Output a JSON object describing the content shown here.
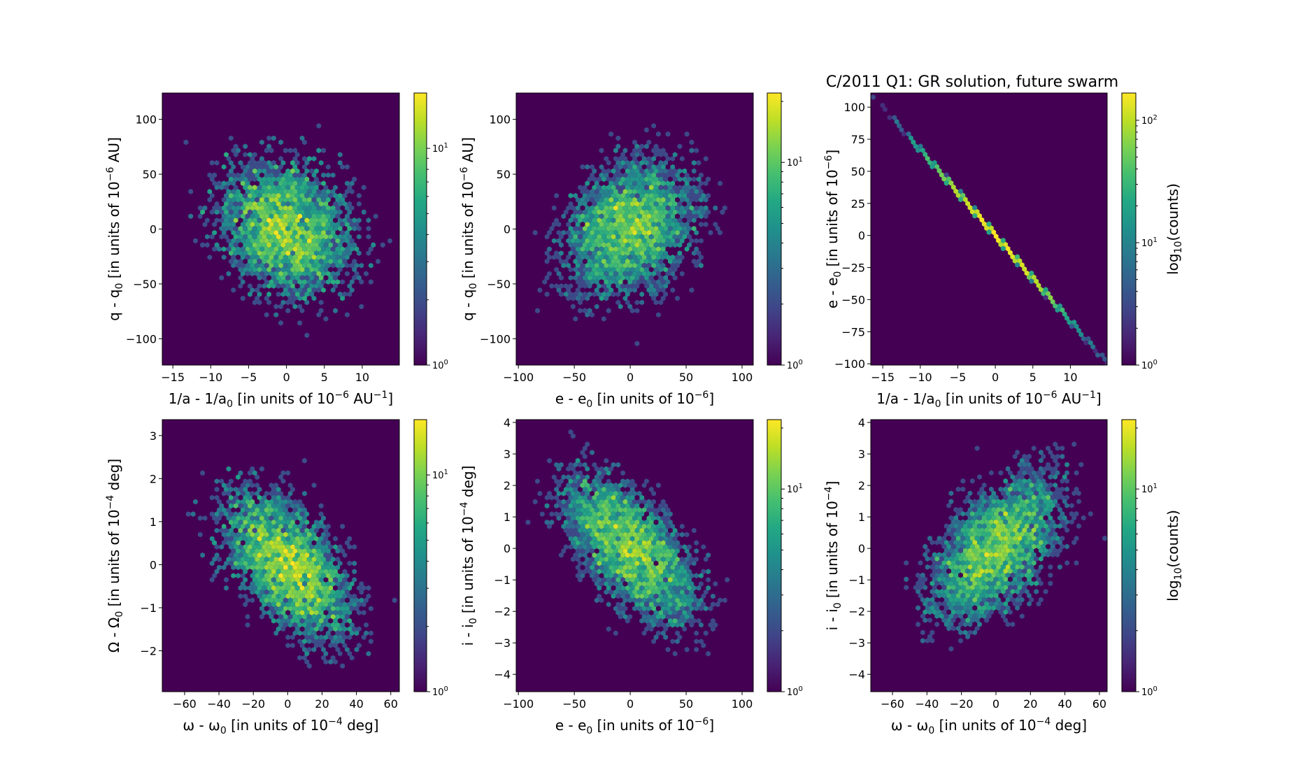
{
  "title": "C/2011 Q1:  GR solution, future swarm",
  "chart_data": [
    {
      "type": "heatmap",
      "subtype": "hexbin",
      "panel": "top-left",
      "xlabel": "1/a - 1/a₀ [in units of 10⁻⁶ AU⁻¹]",
      "xlabel_parts": {
        "main": "1/a - 1/a",
        "sub": "0",
        "rest": " [in units of 10",
        "sup": "−6",
        "rest2": " AU",
        "sup2": "−1",
        "end": "]"
      },
      "ylabel_parts": {
        "main": "q - q",
        "sub": "0",
        "rest": " [in units of 10",
        "sup": "−6",
        "rest2": " AU]",
        "sup2": "",
        "end": ""
      },
      "ylabel": "q - q₀ [in units of 10⁻⁶ AU]",
      "xlim": [
        -16.4,
        14.9
      ],
      "ylim": [
        -124,
        124
      ],
      "xticks": [
        -15,
        -10,
        -5,
        0,
        5,
        10
      ],
      "yticks": [
        -100,
        -50,
        0,
        50,
        100
      ],
      "colorbar": {
        "scale": "log",
        "vmin": 1,
        "vmax": 18,
        "ticks": [
          {
            "value": 1,
            "label_base": "10",
            "label_exp": "0"
          },
          {
            "value": 10,
            "label_base": "10",
            "label_exp": "1"
          }
        ],
        "label": ""
      },
      "distribution": {
        "x_mean": 0,
        "x_sd": 5.0,
        "y_mean": 0,
        "y_sd": 35,
        "corr": -0.25,
        "n": 5000
      }
    },
    {
      "type": "heatmap",
      "subtype": "hexbin",
      "panel": "top-middle",
      "xlabel": "e - e₀ [in units of 10⁻⁶]",
      "xlabel_parts": {
        "main": "e - e",
        "sub": "0",
        "rest": " [in units of 10",
        "sup": "−6",
        "rest2": "]",
        "sup2": "",
        "end": ""
      },
      "ylabel_parts": {
        "main": "q - q",
        "sub": "0",
        "rest": " [in units of 10",
        "sup": "−6",
        "rest2": " AU]",
        "sup2": "",
        "end": ""
      },
      "ylabel": "q - q₀ [in units of 10⁻⁶ AU]",
      "xlim": [
        -102,
        110
      ],
      "ylim": [
        -124,
        124
      ],
      "xticks": [
        -100,
        -50,
        0,
        50,
        100
      ],
      "yticks": [
        -100,
        -50,
        0,
        50,
        100
      ],
      "colorbar": {
        "scale": "log",
        "vmin": 1,
        "vmax": 22,
        "ticks": [
          {
            "value": 1,
            "label_base": "10",
            "label_exp": "0"
          },
          {
            "value": 10,
            "label_base": "10",
            "label_exp": "1"
          }
        ],
        "label": ""
      },
      "distribution": {
        "x_mean": 0,
        "x_sd": 33,
        "y_mean": 0,
        "y_sd": 35,
        "corr": 0.25,
        "n": 5000
      }
    },
    {
      "type": "heatmap",
      "subtype": "hexbin",
      "panel": "top-right",
      "xlabel": "1/a - 1/a₀ [in units of 10⁻⁶ AU⁻¹]",
      "xlabel_parts": {
        "main": "1/a - 1/a",
        "sub": "0",
        "rest": " [in units of 10",
        "sup": "−6",
        "rest2": " AU",
        "sup2": "−1",
        "end": "]"
      },
      "ylabel_parts": {
        "main": "e - e",
        "sub": "0",
        "rest": " [in units of 10",
        "sup": "−6",
        "rest2": "]",
        "sup2": "",
        "end": ""
      },
      "ylabel": "e - e₀ [in units of 10⁻⁶]",
      "xlim": [
        -16.6,
        14.9
      ],
      "ylim": [
        -101,
        111
      ],
      "xticks": [
        -15,
        -10,
        -5,
        0,
        5,
        10
      ],
      "yticks": [
        -100,
        -75,
        -50,
        -25,
        0,
        25,
        50,
        75,
        100
      ],
      "colorbar": {
        "scale": "log",
        "vmin": 1,
        "vmax": 167,
        "ticks": [
          {
            "value": 1,
            "label_base": "10",
            "label_exp": "0"
          },
          {
            "value": 10,
            "label_base": "10",
            "label_exp": "1"
          },
          {
            "value": 100,
            "label_base": "10",
            "label_exp": "2"
          }
        ],
        "label": "log₁₀(counts)",
        "label_parts": {
          "main": "log",
          "sub": "10",
          "rest": "(counts)"
        }
      },
      "distribution": {
        "x_mean": 0,
        "x_sd": 5.0,
        "y_mean": 0,
        "y_sd": 33.5,
        "corr": -0.9999,
        "n": 5000
      }
    },
    {
      "type": "heatmap",
      "subtype": "hexbin",
      "panel": "bottom-left",
      "xlabel": "ω - ω₀ [in units of 10⁻⁴ deg]",
      "xlabel_parts": {
        "main": "ω - ω",
        "sub": "0",
        "rest": " [in units of 10",
        "sup": "−4",
        "rest2": " deg]",
        "sup2": "",
        "end": ""
      },
      "ylabel_parts": {
        "main": "Ω - Ω",
        "sub": "0",
        "rest": " [in units of 10",
        "sup": "−4",
        "rest2": " deg]",
        "sup2": "",
        "end": ""
      },
      "ylabel": "Ω - Ω₀ [in units of 10⁻⁴ deg]",
      "xlim": [
        -73,
        65
      ],
      "ylim": [
        -2.95,
        3.37
      ],
      "xticks": [
        -60,
        -40,
        -20,
        0,
        20,
        40,
        60
      ],
      "yticks": [
        -2,
        -1,
        0,
        1,
        2,
        3
      ],
      "colorbar": {
        "scale": "log",
        "vmin": 1,
        "vmax": 18,
        "ticks": [
          {
            "value": 1,
            "label_base": "10",
            "label_exp": "0"
          },
          {
            "value": 10,
            "label_base": "10",
            "label_exp": "1"
          }
        ],
        "label": ""
      },
      "distribution": {
        "x_mean": 0,
        "x_sd": 21,
        "y_mean": 0,
        "y_sd": 0.95,
        "corr": -0.55,
        "n": 5000
      }
    },
    {
      "type": "heatmap",
      "subtype": "hexbin",
      "panel": "bottom-middle",
      "xlabel": "e - e₀ [in units of 10⁻⁶]",
      "xlabel_parts": {
        "main": "e - e",
        "sub": "0",
        "rest": " [in units of 10",
        "sup": "−6",
        "rest2": "]",
        "sup2": "",
        "end": ""
      },
      "ylabel_parts": {
        "main": "i - i",
        "sub": "0",
        "rest": " [in units of 10",
        "sup": "−4",
        "rest2": " deg]",
        "sup2": "",
        "end": ""
      },
      "ylabel": "i - i₀ [in units of 10⁻⁴ deg]",
      "xlim": [
        -102,
        110
      ],
      "ylim": [
        -4.55,
        4.09
      ],
      "xticks": [
        -100,
        -50,
        0,
        50,
        100
      ],
      "yticks": [
        -4,
        -3,
        -2,
        -1,
        0,
        1,
        2,
        3,
        4
      ],
      "colorbar": {
        "scale": "log",
        "vmin": 1,
        "vmax": 22,
        "ticks": [
          {
            "value": 1,
            "label_base": "10",
            "label_exp": "0"
          },
          {
            "value": 10,
            "label_base": "10",
            "label_exp": "1"
          }
        ],
        "label": ""
      },
      "distribution": {
        "x_mean": 0,
        "x_sd": 33,
        "y_mean": 0,
        "y_sd": 1.3,
        "corr": -0.6,
        "n": 5000
      }
    },
    {
      "type": "heatmap",
      "subtype": "hexbin",
      "panel": "bottom-right",
      "xlabel": "ω - ω₀ [in units of 10⁻⁴ deg]",
      "xlabel_parts": {
        "main": "ω - ω",
        "sub": "0",
        "rest": " [in units of 10",
        "sup": "−4",
        "rest2": " deg]",
        "sup2": "",
        "end": ""
      },
      "ylabel_parts": {
        "main": "i - i",
        "sub": "0",
        "rest": " [in units of 10",
        "sup": "−4",
        "rest2": "]",
        "sup2": "",
        "end": ""
      },
      "ylabel": "i - i₀ [in units of 10⁻⁴]",
      "xlim": [
        -72.6,
        64.5
      ],
      "ylim": [
        -4.55,
        4.09
      ],
      "xticks": [
        -60,
        -40,
        -20,
        0,
        20,
        40,
        60
      ],
      "yticks": [
        -4,
        -3,
        -2,
        -1,
        0,
        1,
        2,
        3,
        4
      ],
      "colorbar": {
        "scale": "log",
        "vmin": 1,
        "vmax": 22,
        "ticks": [
          {
            "value": 1,
            "label_base": "10",
            "label_exp": "0"
          },
          {
            "value": 10,
            "label_base": "10",
            "label_exp": "1"
          }
        ],
        "label": "log₁₀(counts)",
        "label_parts": {
          "main": "log",
          "sub": "10",
          "rest": "(counts)"
        }
      },
      "distribution": {
        "x_mean": 0,
        "x_sd": 21,
        "y_mean": 0,
        "y_sd": 1.3,
        "corr": 0.55,
        "n": 5000
      }
    }
  ],
  "colors": {
    "background": "#ffffff",
    "axes_face": "#440154",
    "colormap": "viridis"
  }
}
